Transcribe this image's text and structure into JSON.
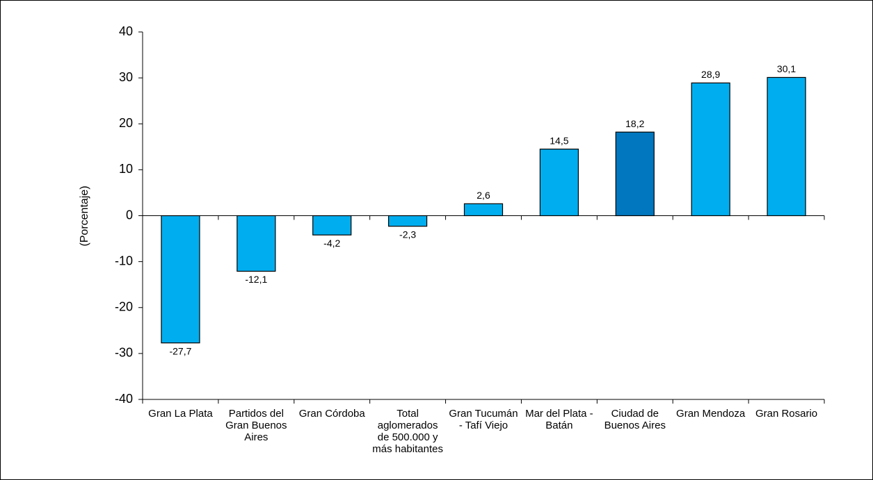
{
  "chart_data": {
    "type": "bar",
    "y_label": "(Porcentaje)",
    "categories": [
      "Gran La Plata",
      "Partidos del Gran Buenos Aires",
      "Gran Córdoba",
      "Total aglomerados de 500.000 y más habitantes",
      "Gran Tucumán - Tafí Viejo",
      "Mar del Plata - Batán",
      "Ciudad de Buenos Aires",
      "Gran Mendoza",
      "Gran Rosario"
    ],
    "values": [
      -27.7,
      -12.1,
      -4.2,
      -2.3,
      2.6,
      14.5,
      18.2,
      28.9,
      30.1
    ],
    "value_labels": [
      "-27,7",
      "-12,1",
      "-4,2",
      "-2,3",
      "2,6",
      "14,5",
      "18,2",
      "28,9",
      "30,1"
    ],
    "colors": [
      "#00aeef",
      "#00aeef",
      "#00aeef",
      "#00aeef",
      "#00aeef",
      "#00aeef",
      "#0077bf",
      "#00aeef",
      "#00aeef"
    ],
    "ylim": [
      -40,
      40
    ],
    "yticks": [
      -40,
      -30,
      -20,
      -10,
      0,
      10,
      20,
      30,
      40
    ]
  }
}
